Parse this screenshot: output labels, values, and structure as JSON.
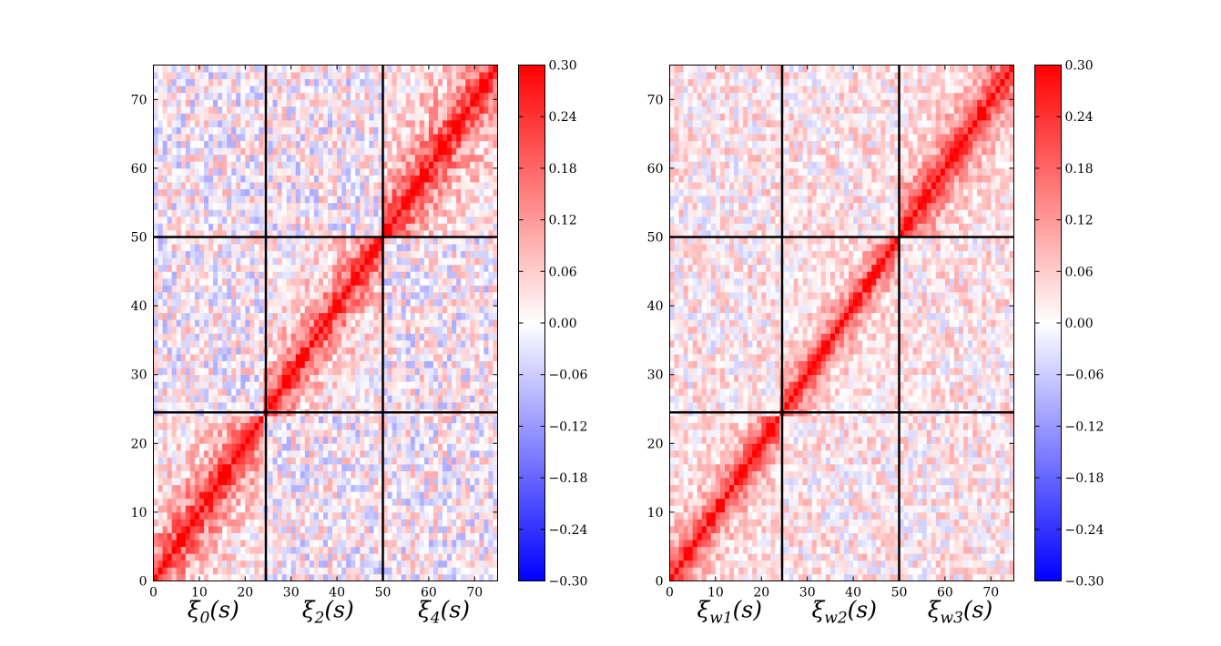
{
  "chart_data": [
    {
      "type": "heatmap",
      "title": "",
      "xlabel": "",
      "ylabel": "",
      "xlim": [
        0,
        75
      ],
      "ylim": [
        0,
        75
      ],
      "matrix_size": 75,
      "xticks": [
        0,
        10,
        20,
        30,
        40,
        50,
        60,
        70
      ],
      "yticks": [
        0,
        10,
        20,
        30,
        40,
        50,
        60,
        70
      ],
      "block_boundaries": [
        24.5,
        50
      ],
      "block_labels": [
        {
          "base": "ξ",
          "sub": "0",
          "arg": "(s)"
        },
        {
          "base": "ξ",
          "sub": "2",
          "arg": "(s)"
        },
        {
          "base": "ξ",
          "sub": "4",
          "arg": "(s)"
        }
      ],
      "diagonal_value": 0.3,
      "near_diagonal_correlation": "strong positive inside each diagonal block",
      "off_block_range": [
        -0.1,
        0.1
      ],
      "colorbar": {
        "cmap": "bwr",
        "vmin": -0.3,
        "vmax": 0.3,
        "ticks": [
          "0.30",
          "0.24",
          "0.18",
          "0.12",
          "0.06",
          "0.00",
          "−0.06",
          "−0.12",
          "−0.18",
          "−0.24",
          "−0.30"
        ]
      },
      "seed": 11,
      "correlation_length": [
        0.82,
        0.8,
        0.84
      ]
    },
    {
      "type": "heatmap",
      "title": "",
      "xlabel": "",
      "ylabel": "",
      "xlim": [
        0,
        75
      ],
      "ylim": [
        0,
        75
      ],
      "matrix_size": 75,
      "xticks": [
        0,
        10,
        20,
        30,
        40,
        50,
        60,
        70
      ],
      "yticks": [
        0,
        10,
        20,
        30,
        40,
        50,
        60,
        70
      ],
      "block_boundaries": [
        24.5,
        50
      ],
      "block_labels": [
        {
          "base": "ξ",
          "sub": "w1",
          "arg": "(s)"
        },
        {
          "base": "ξ",
          "sub": "w2",
          "arg": "(s)"
        },
        {
          "base": "ξ",
          "sub": "w3",
          "arg": "(s)"
        }
      ],
      "diagonal_value": 0.3,
      "near_diagonal_correlation": "moderate positive inside each diagonal block",
      "off_block_range": [
        -0.06,
        0.1
      ],
      "colorbar": {
        "cmap": "bwr",
        "vmin": -0.3,
        "vmax": 0.3,
        "ticks": [
          "0.30",
          "0.24",
          "0.18",
          "0.12",
          "0.06",
          "0.00",
          "−0.06",
          "−0.12",
          "−0.18",
          "−0.24",
          "−0.30"
        ]
      },
      "seed": 29,
      "correlation_length": [
        0.74,
        0.7,
        0.78
      ]
    }
  ],
  "colors": {
    "positive": "#ff0000",
    "zero": "#ffffff",
    "negative": "#0000ff",
    "lines": "#000000"
  }
}
